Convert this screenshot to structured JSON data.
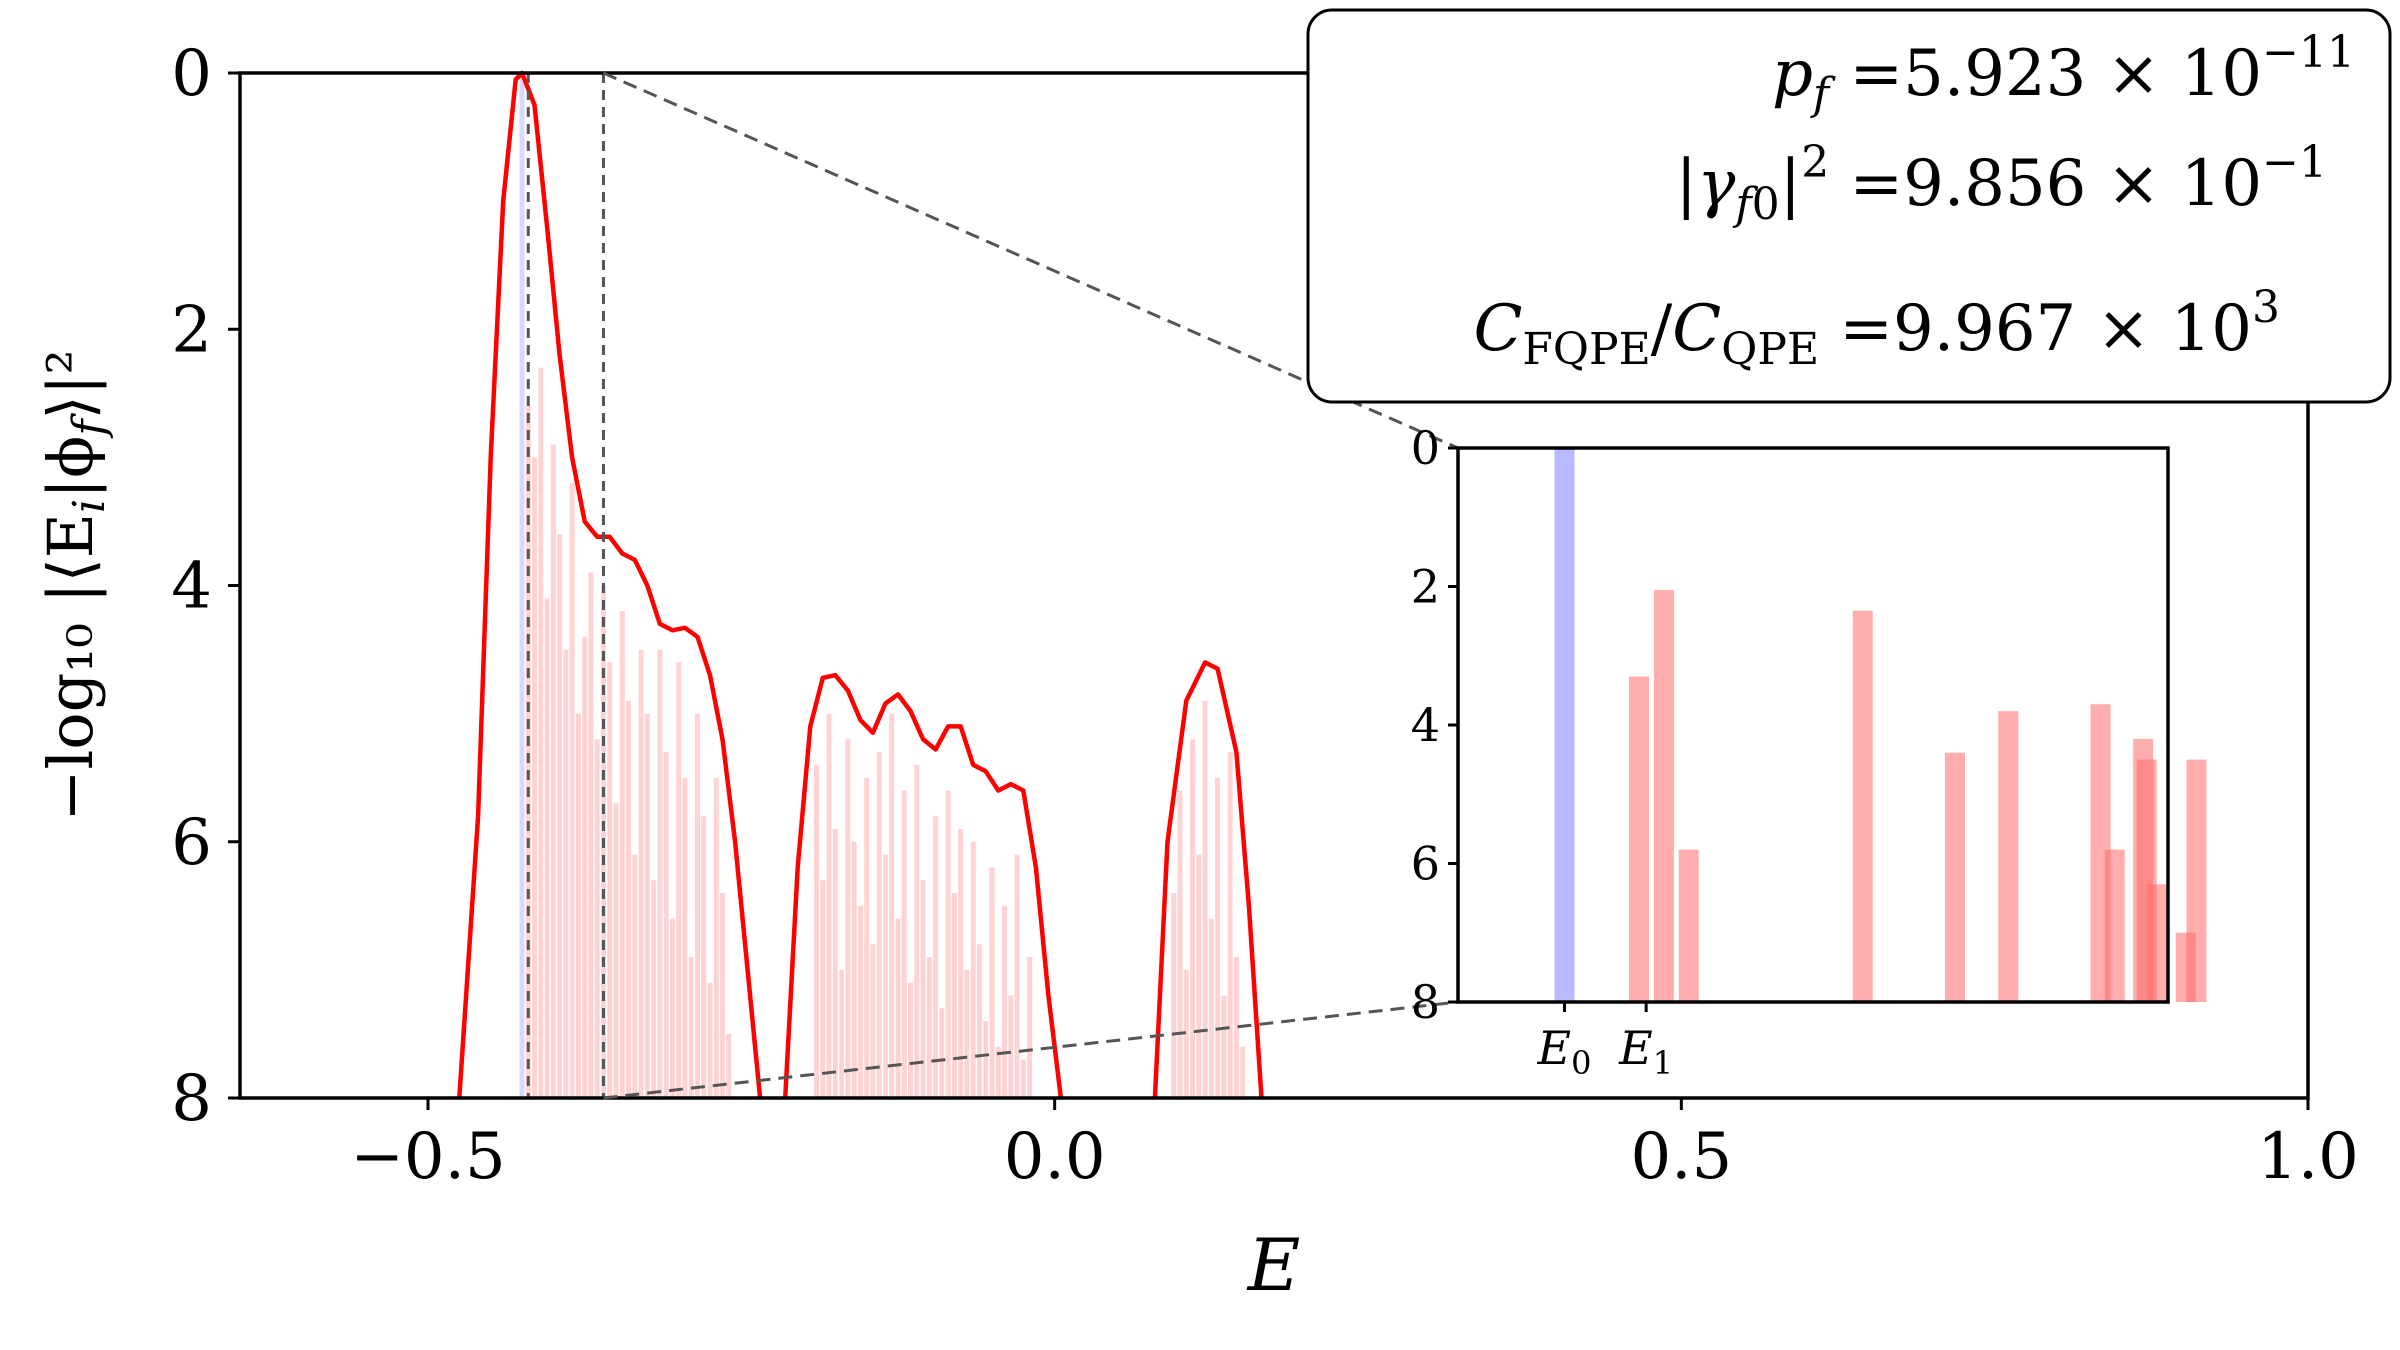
{
  "chart_data": [
    {
      "type": "bar",
      "name": "main",
      "xlabel": "E",
      "ylabel": "−log₁₀ |⟨Eᵢ|ϕ_f⟩|²",
      "xlim": [
        -0.65,
        1.0
      ],
      "ylim": [
        8,
        0
      ],
      "xticks": [
        -0.5,
        0.0,
        0.5,
        1.0
      ],
      "xtick_labels": [
        "−0.5",
        "0.0",
        "0.5",
        "1.0"
      ],
      "yticks": [
        0,
        2,
        4,
        6,
        8
      ],
      "ytick_labels": [
        "0",
        "2",
        "4",
        "6",
        "8"
      ],
      "colors": {
        "envelope": "#ff0000",
        "bars": "#ff9e9e",
        "ground_bar": "#b3b3ff",
        "guide": "#555555"
      },
      "envelope_series": [
        [
          [
            -0.475,
            8.0
          ],
          [
            -0.46,
            5.8
          ],
          [
            -0.45,
            3.0
          ],
          [
            -0.44,
            1.0
          ],
          [
            -0.43,
            0.05
          ],
          [
            -0.425,
            0.0
          ],
          [
            -0.415,
            0.25
          ],
          [
            -0.405,
            1.2
          ],
          [
            -0.395,
            2.2
          ],
          [
            -0.385,
            3.0
          ],
          [
            -0.375,
            3.5
          ],
          [
            -0.365,
            3.62
          ],
          [
            -0.355,
            3.62
          ],
          [
            -0.345,
            3.75
          ],
          [
            -0.335,
            3.8
          ],
          [
            -0.325,
            4.0
          ],
          [
            -0.315,
            4.3
          ],
          [
            -0.305,
            4.35
          ],
          [
            -0.295,
            4.33
          ],
          [
            -0.285,
            4.4
          ],
          [
            -0.275,
            4.7
          ],
          [
            -0.265,
            5.2
          ],
          [
            -0.255,
            6.0
          ],
          [
            -0.245,
            7.0
          ],
          [
            -0.235,
            8.0
          ]
        ],
        [
          [
            -0.215,
            8.0
          ],
          [
            -0.205,
            6.2
          ],
          [
            -0.195,
            5.1
          ],
          [
            -0.185,
            4.72
          ],
          [
            -0.175,
            4.7
          ],
          [
            -0.165,
            4.82
          ],
          [
            -0.155,
            5.05
          ],
          [
            -0.145,
            5.15
          ],
          [
            -0.135,
            4.92
          ],
          [
            -0.125,
            4.85
          ],
          [
            -0.115,
            4.98
          ],
          [
            -0.105,
            5.2
          ],
          [
            -0.095,
            5.28
          ],
          [
            -0.085,
            5.1
          ],
          [
            -0.075,
            5.1
          ],
          [
            -0.065,
            5.4
          ],
          [
            -0.055,
            5.45
          ],
          [
            -0.045,
            5.6
          ],
          [
            -0.035,
            5.55
          ],
          [
            -0.025,
            5.6
          ],
          [
            -0.015,
            6.2
          ],
          [
            -0.005,
            7.2
          ],
          [
            0.005,
            8.0
          ]
        ],
        [
          [
            0.08,
            8.0
          ],
          [
            0.09,
            6.0
          ],
          [
            0.105,
            4.9
          ],
          [
            0.12,
            4.6
          ],
          [
            0.13,
            4.65
          ],
          [
            0.145,
            5.3
          ],
          [
            0.155,
            6.5
          ],
          [
            0.165,
            8.0
          ]
        ]
      ],
      "bars": {
        "width": 0.004,
        "ground": {
          "E": -0.425,
          "value": 0.0
        },
        "red": [
          [
            -0.42,
            2.6
          ],
          [
            -0.415,
            3.0
          ],
          [
            -0.41,
            2.3
          ],
          [
            -0.405,
            4.1
          ],
          [
            -0.4,
            2.9
          ],
          [
            -0.395,
            3.6
          ],
          [
            -0.39,
            4.5
          ],
          [
            -0.385,
            3.2
          ],
          [
            -0.38,
            5.0
          ],
          [
            -0.375,
            4.4
          ],
          [
            -0.37,
            3.9
          ],
          [
            -0.365,
            5.2
          ],
          [
            -0.36,
            4.0
          ],
          [
            -0.355,
            4.6
          ],
          [
            -0.35,
            5.7
          ],
          [
            -0.345,
            4.2
          ],
          [
            -0.34,
            4.9
          ],
          [
            -0.335,
            6.1
          ],
          [
            -0.33,
            4.5
          ],
          [
            -0.325,
            5.0
          ],
          [
            -0.32,
            6.3
          ],
          [
            -0.315,
            4.5
          ],
          [
            -0.31,
            5.3
          ],
          [
            -0.305,
            6.6
          ],
          [
            -0.3,
            4.6
          ],
          [
            -0.295,
            5.5
          ],
          [
            -0.29,
            6.9
          ],
          [
            -0.285,
            5.0
          ],
          [
            -0.28,
            5.8
          ],
          [
            -0.275,
            7.1
          ],
          [
            -0.27,
            5.5
          ],
          [
            -0.265,
            6.4
          ],
          [
            -0.26,
            7.5
          ],
          [
            -0.19,
            5.4
          ],
          [
            -0.185,
            6.3
          ],
          [
            -0.18,
            5.0
          ],
          [
            -0.175,
            5.9
          ],
          [
            -0.17,
            7.0
          ],
          [
            -0.165,
            5.2
          ],
          [
            -0.16,
            6.0
          ],
          [
            -0.155,
            6.5
          ],
          [
            -0.15,
            5.5
          ],
          [
            -0.145,
            6.8
          ],
          [
            -0.14,
            5.3
          ],
          [
            -0.135,
            6.1
          ],
          [
            -0.13,
            5.0
          ],
          [
            -0.125,
            6.6
          ],
          [
            -0.12,
            5.6
          ],
          [
            -0.115,
            7.1
          ],
          [
            -0.11,
            5.4
          ],
          [
            -0.105,
            6.3
          ],
          [
            -0.1,
            6.9
          ],
          [
            -0.095,
            5.8
          ],
          [
            -0.09,
            7.3
          ],
          [
            -0.085,
            5.6
          ],
          [
            -0.08,
            6.4
          ],
          [
            -0.075,
            5.9
          ],
          [
            -0.07,
            7.0
          ],
          [
            -0.065,
            6.0
          ],
          [
            -0.06,
            6.8
          ],
          [
            -0.055,
            7.4
          ],
          [
            -0.05,
            6.2
          ],
          [
            -0.045,
            7.6
          ],
          [
            -0.04,
            6.5
          ],
          [
            -0.035,
            7.2
          ],
          [
            -0.03,
            6.1
          ],
          [
            -0.025,
            7.7
          ],
          [
            -0.02,
            6.9
          ],
          [
            0.095,
            6.4
          ],
          [
            0.1,
            5.6
          ],
          [
            0.105,
            7.0
          ],
          [
            0.11,
            5.2
          ],
          [
            0.115,
            6.1
          ],
          [
            0.12,
            4.9
          ],
          [
            0.125,
            6.6
          ],
          [
            0.13,
            5.5
          ],
          [
            0.135,
            7.2
          ],
          [
            0.14,
            5.3
          ],
          [
            0.145,
            6.9
          ],
          [
            0.15,
            7.6
          ]
        ]
      },
      "guide_lines_E": [
        -0.42,
        -0.36
      ],
      "annotations": [
        {
          "lhs": "p_f",
          "rhs": "=5.923 × 10⁻¹¹"
        },
        {
          "lhs": "|γ_f0|²",
          "rhs": "=9.856 × 10⁻¹"
        },
        {
          "lhs": "C_FQPE/C_QPE",
          "rhs": "=9.967 × 10³"
        }
      ]
    },
    {
      "type": "bar",
      "name": "inset",
      "xlim": [
        -0.44,
        -0.34
      ],
      "ylim": [
        8,
        0
      ],
      "yticks": [
        0,
        2,
        4,
        6,
        8
      ],
      "ytick_labels": [
        "0",
        "2",
        "4",
        "6",
        "8"
      ],
      "xtick_labels": [
        "E₀",
        "E₁"
      ],
      "xticks": [
        -0.425,
        -0.4135
      ],
      "bars": [
        {
          "E": -0.425,
          "value": 0.0,
          "color": "blue"
        },
        {
          "E": -0.4145,
          "value": 3.3,
          "color": "red"
        },
        {
          "E": -0.411,
          "value": 2.05,
          "color": "red"
        },
        {
          "E": -0.4075,
          "value": 5.8,
          "color": "red"
        },
        {
          "E": -0.383,
          "value": 2.35,
          "color": "red"
        },
        {
          "E": -0.37,
          "value": 4.4,
          "color": "red"
        },
        {
          "E": -0.3625,
          "value": 3.8,
          "color": "red"
        },
        {
          "E": -0.3495,
          "value": 3.7,
          "color": "red"
        },
        {
          "E": -0.3475,
          "value": 5.8,
          "color": "red"
        },
        {
          "E": -0.3435,
          "value": 4.2,
          "color": "red"
        },
        {
          "E": -0.343,
          "value": 4.5,
          "color": "red"
        },
        {
          "E": -0.3415,
          "value": 6.3,
          "color": "red"
        },
        {
          "E": -0.3375,
          "value": 7.0,
          "color": "red"
        },
        {
          "E": -0.336,
          "value": 4.5,
          "color": "red"
        }
      ]
    }
  ]
}
